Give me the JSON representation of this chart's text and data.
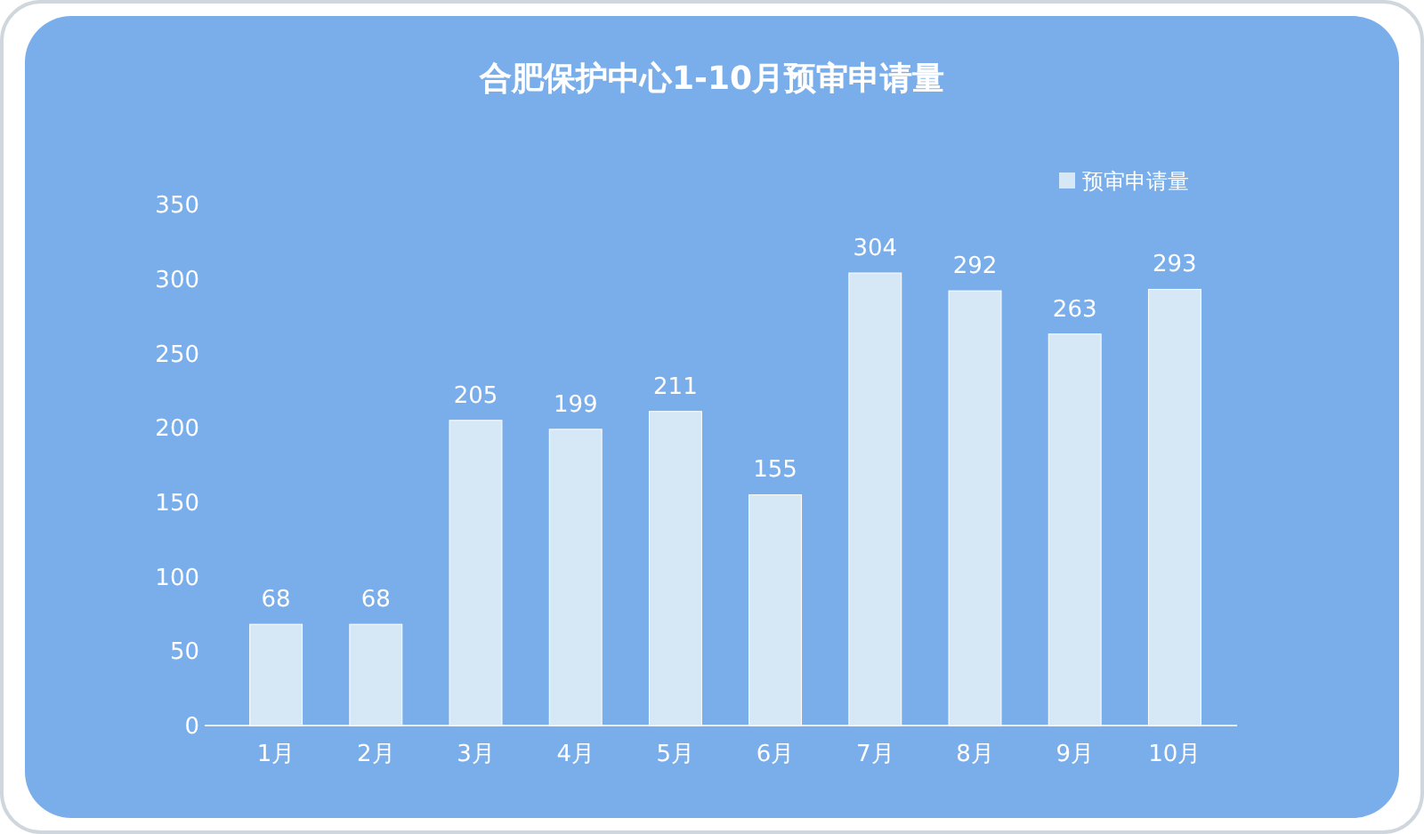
{
  "chart_data": {
    "type": "bar",
    "title": "合肥保护中心1-10月预审申请量",
    "categories": [
      "1月",
      "2月",
      "3月",
      "4月",
      "5月",
      "6月",
      "7月",
      "8月",
      "9月",
      "10月"
    ],
    "series": [
      {
        "name": "预审申请量",
        "color": "#d6e8f6",
        "values": [
          68,
          68,
          205,
          199,
          211,
          155,
          304,
          292,
          263,
          293
        ]
      }
    ],
    "ylim": [
      0,
      350
    ],
    "yticks": [
      0,
      50,
      100,
      150,
      200,
      250,
      300,
      350
    ],
    "grid": false,
    "legend": "top right",
    "data_labels": true
  }
}
